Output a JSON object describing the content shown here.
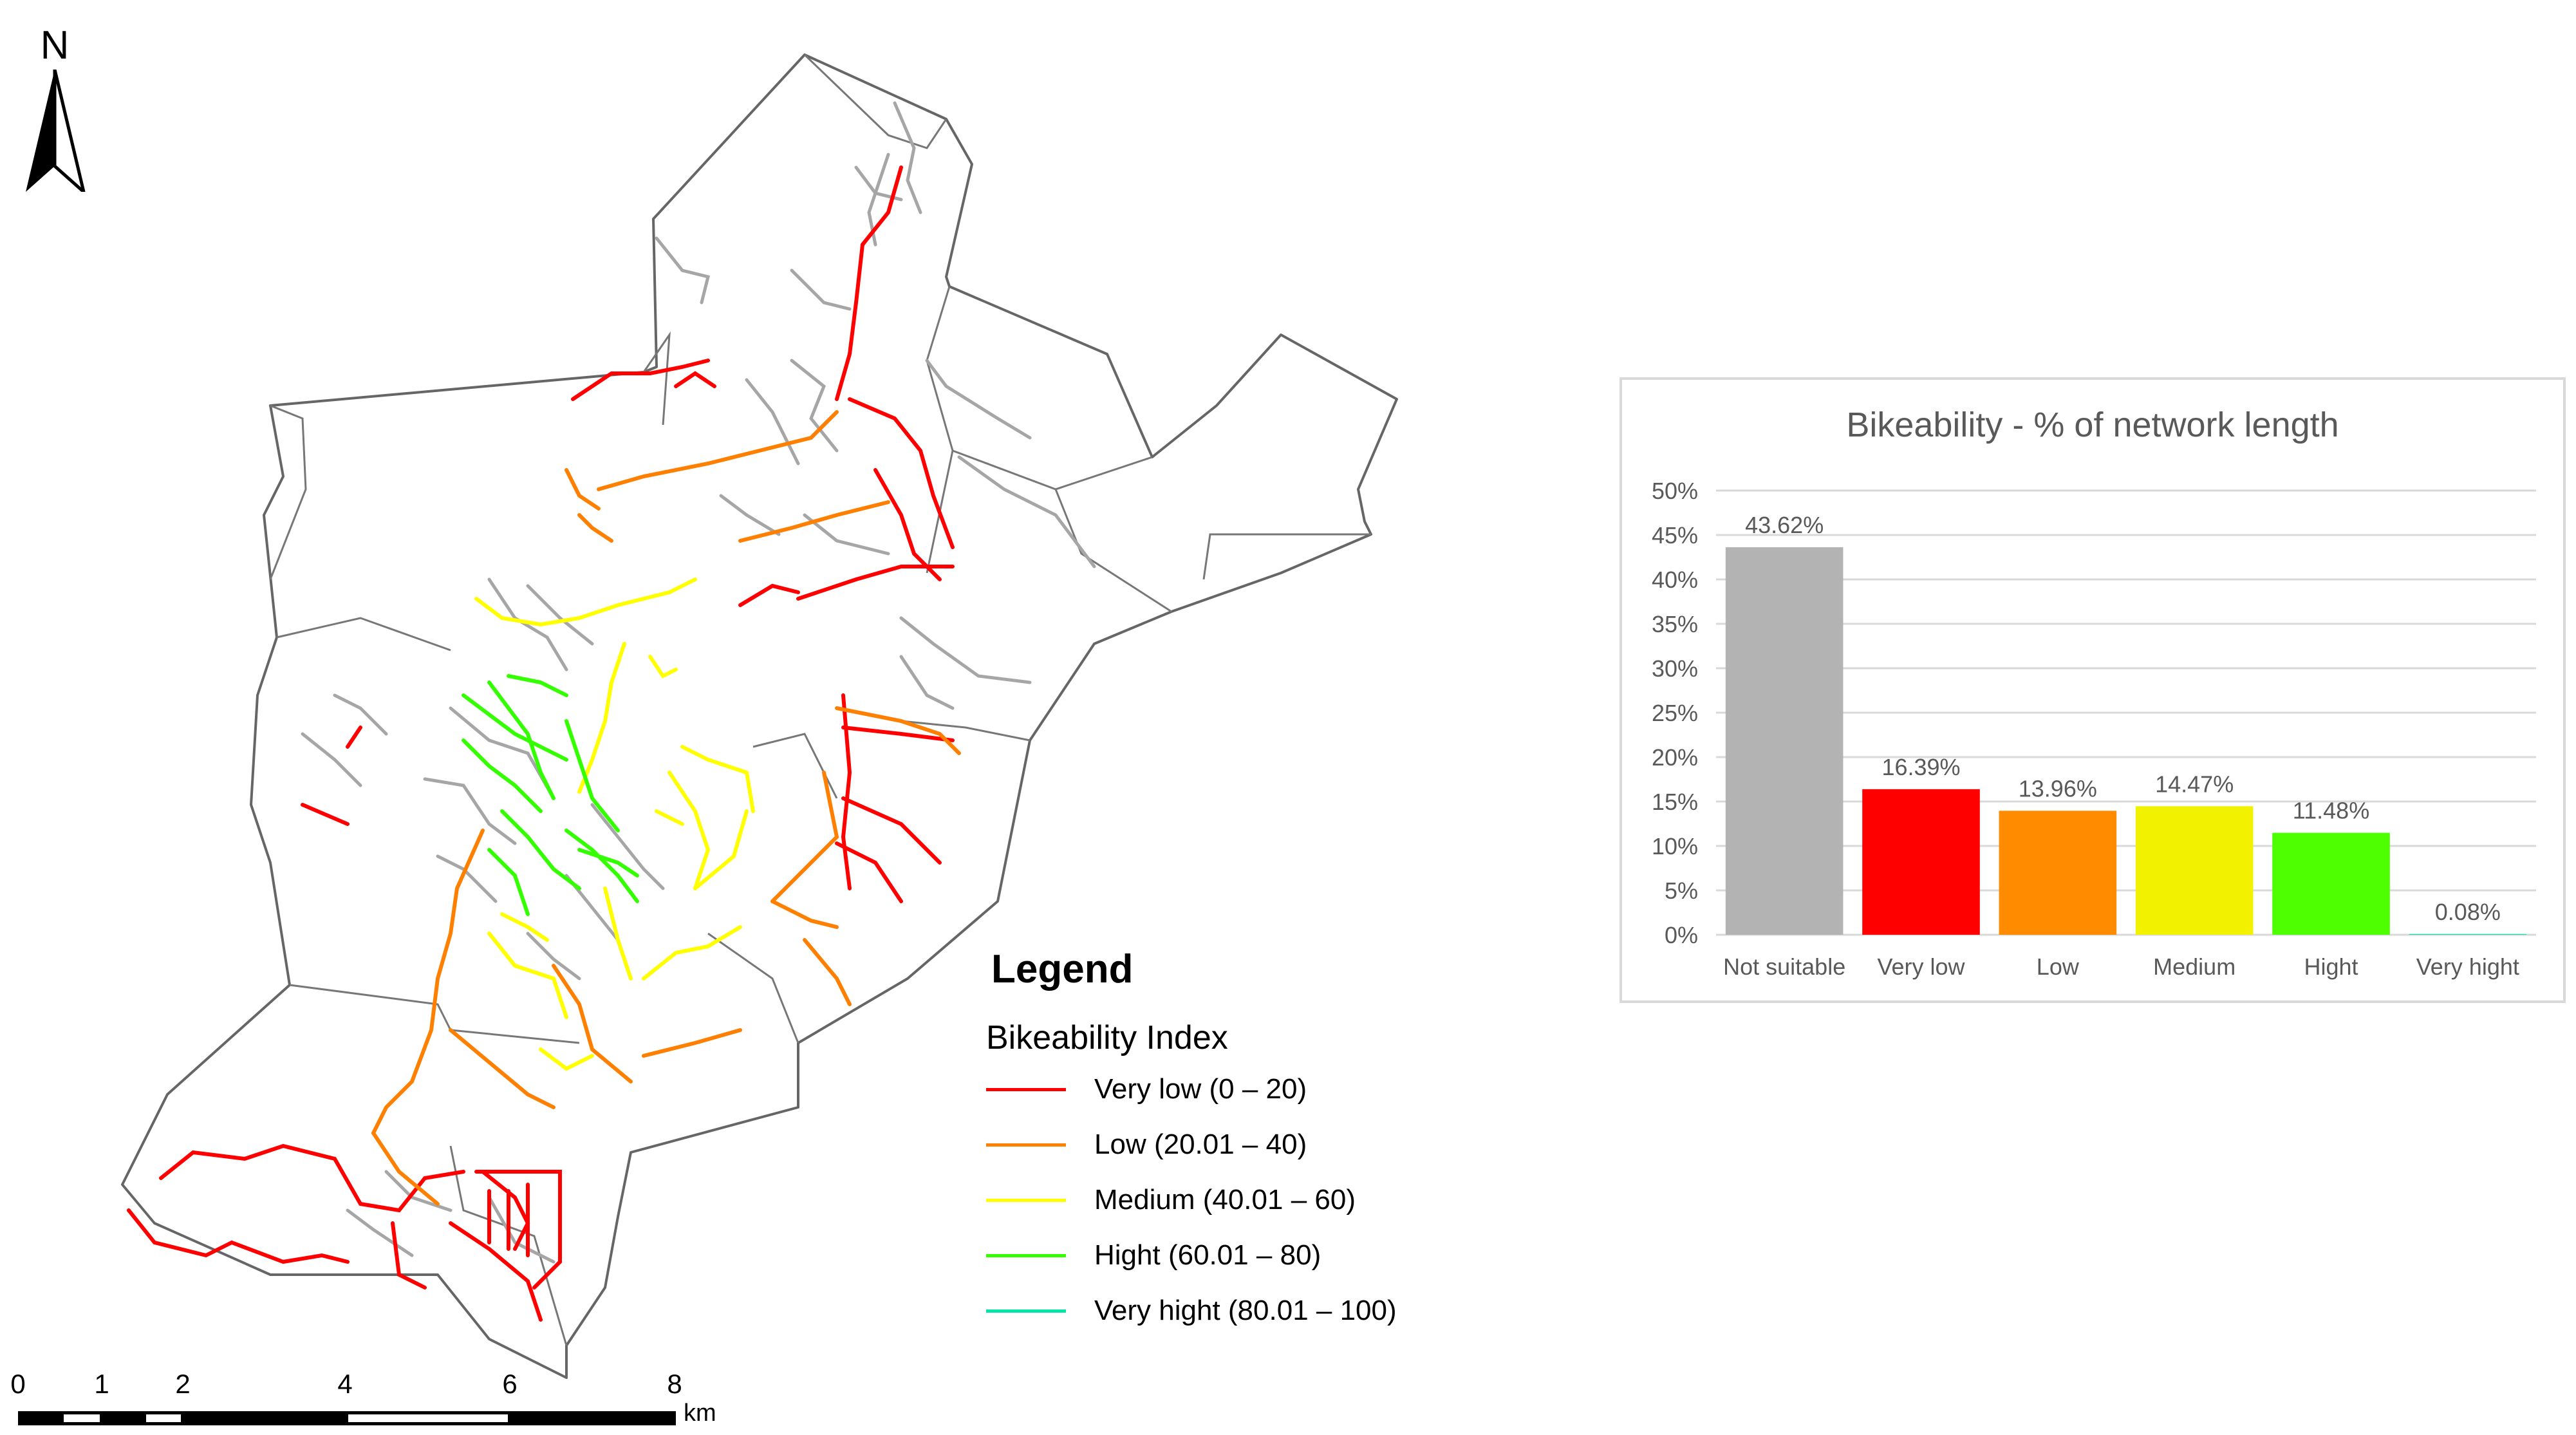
{
  "north_arrow": {
    "letter": "N"
  },
  "map": {
    "icon_name": "map-of-network"
  },
  "legend": {
    "title": "Legend",
    "subtitle": "Bikeability Index",
    "items": [
      {
        "label": "Very low (0 – 20)",
        "color": "#ff0000"
      },
      {
        "label": "Low (20.01 – 40)",
        "color": "#ff8000"
      },
      {
        "label": "Medium (40.01 – 60)",
        "color": "#ffff00"
      },
      {
        "label": "Hight (60.01 – 80)",
        "color": "#33ff00"
      },
      {
        "label": "Very hight (80.01 – 100)",
        "color": "#00e6a9"
      }
    ]
  },
  "scale": {
    "labels": [
      "0",
      "1",
      "2",
      "4",
      "6",
      "8"
    ],
    "unit": "km"
  },
  "colors": {
    "road_other": "#a6a6a6",
    "boundary": "#666666",
    "very_low": "#ff0000",
    "low": "#ff8000",
    "medium": "#ffff00",
    "hight": "#33ff00"
  },
  "chart_data": {
    "type": "bar",
    "title": "Bikeability - % of network length",
    "categories": [
      "Not suitable",
      "Very low",
      "Low",
      "Medium",
      "Hight",
      "Very hight"
    ],
    "values": [
      43.62,
      16.39,
      13.96,
      14.47,
      11.48,
      0.08
    ],
    "data_labels": [
      "43.62%",
      "16.39%",
      "13.96%",
      "14.47%",
      "11.48%",
      "0.08%"
    ],
    "colors": [
      "#b3b3b3",
      "#ff0000",
      "#ff8c00",
      "#f2f200",
      "#4dff00",
      "#00e6a9"
    ],
    "y_ticks": [
      "0%",
      "5%",
      "10%",
      "15%",
      "20%",
      "25%",
      "30%",
      "35%",
      "40%",
      "45%",
      "50%"
    ],
    "ylim": [
      0,
      50
    ],
    "grid": true
  }
}
